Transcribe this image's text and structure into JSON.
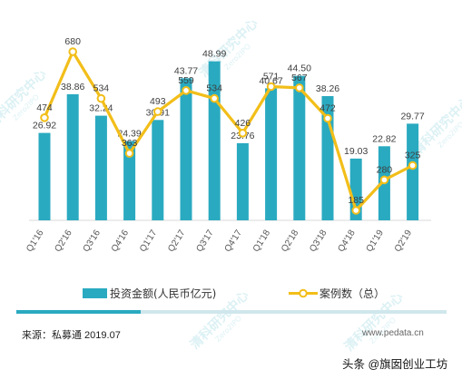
{
  "chart_data": {
    "type": "bar",
    "categories": [
      "Q1'16",
      "Q2'16",
      "Q3'16",
      "Q4'16",
      "Q1'17",
      "Q2'17",
      "Q3'17",
      "Q4'17",
      "Q1'18",
      "Q2'18",
      "Q3'18",
      "Q4'18",
      "Q1'19",
      "Q2'19"
    ],
    "series": [
      {
        "name": "投资金额(人民币亿元)",
        "type": "bar",
        "values": [
          26.92,
          38.86,
          32.24,
          24.39,
          30.91,
          43.77,
          48.99,
          23.76,
          40.67,
          44.5,
          38.26,
          19.03,
          22.82,
          29.77
        ],
        "color": "#2AAAC0"
      },
      {
        "name": "案例数（总）",
        "type": "line",
        "values": [
          474,
          680,
          534,
          363,
          493,
          559,
          534,
          426,
          571,
          567,
          472,
          185,
          280,
          325
        ],
        "color": "#F2BE19"
      }
    ],
    "legend": "bottom",
    "grid": false
  },
  "footer": {
    "source": "来源：私募通 2019.07",
    "url": "www.pedata.cn",
    "attribution": "头条 @旗囡创业工坊"
  },
  "watermark": {
    "text": "清科研究中心",
    "sub": "Zero2IPO"
  },
  "colors": {
    "bar": "#2AAAC0",
    "line": "#F2BE19",
    "separator_dark": "#2AAAC0",
    "separator_light": "#CFE7EC"
  }
}
